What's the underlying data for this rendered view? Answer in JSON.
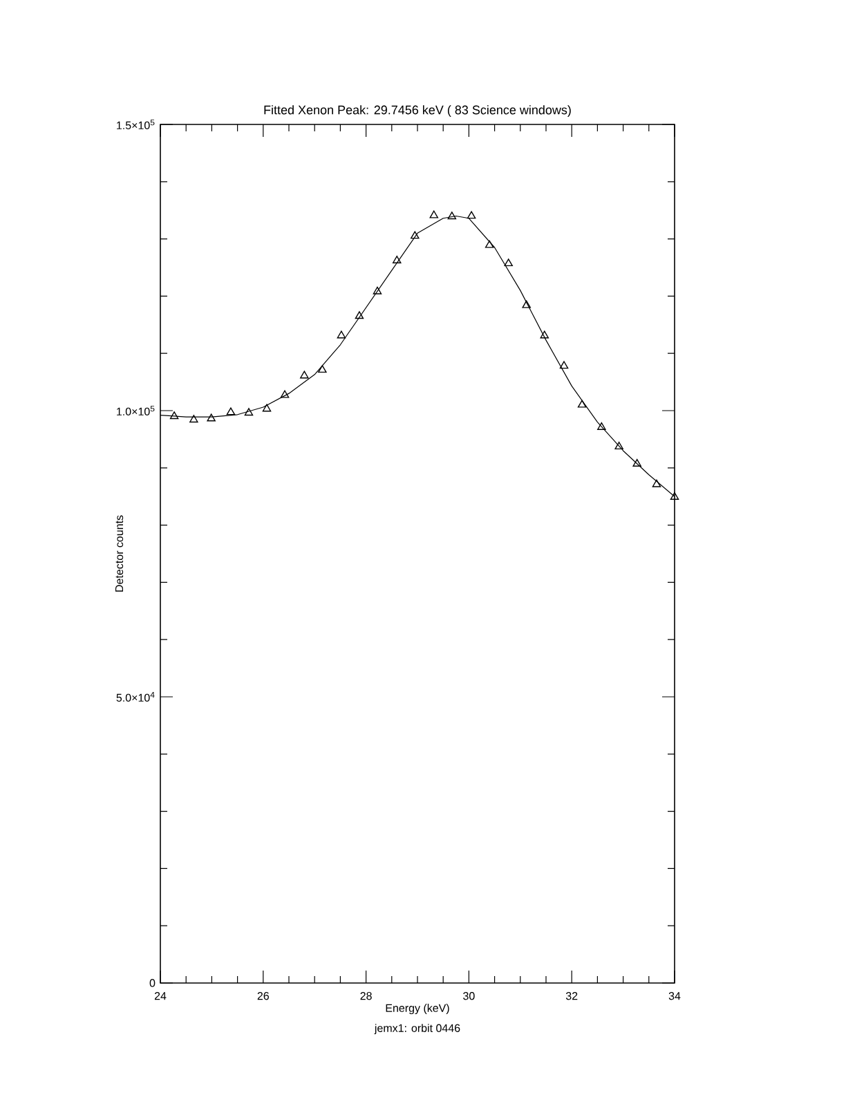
{
  "chart_data": {
    "type": "line",
    "title": "Fitted Xenon Peak: 29.7456 keV ( 83 Science windows)",
    "xlabel": "Energy (keV)",
    "ylabel": "Detector counts",
    "annotations": [
      "jemx1: orbit 0446"
    ],
    "xlim": [
      24,
      34
    ],
    "ylim": [
      0,
      150000
    ],
    "xticks": [
      24,
      {
        "value": 24.5,
        "label": null
      },
      {
        "value": 25,
        "label": null
      },
      {
        "value": 25.5,
        "label": null
      },
      26,
      {
        "value": 26.5,
        "label": null
      },
      {
        "value": 27,
        "label": null
      },
      {
        "value": 27.5,
        "label": null
      },
      28,
      {
        "value": 28.5,
        "label": null
      },
      {
        "value": 29,
        "label": null
      },
      {
        "value": 29.5,
        "label": null
      },
      30,
      {
        "value": 30.5,
        "label": null
      },
      {
        "value": 31,
        "label": null
      },
      {
        "value": 31.5,
        "label": null
      },
      32,
      {
        "value": 32.5,
        "label": null
      },
      {
        "value": 33,
        "label": null
      },
      {
        "value": 33.5,
        "label": null
      },
      34
    ],
    "yticks": [
      0,
      {
        "value": 10000,
        "label": null
      },
      {
        "value": 20000,
        "label": null
      },
      {
        "value": 30000,
        "label": null
      },
      {
        "value": 40000,
        "label": null
      },
      {
        "value": 50000,
        "label": "5.0×10$^{4}$"
      },
      {
        "value": 60000,
        "label": null
      },
      {
        "value": 70000,
        "label": null
      },
      {
        "value": 80000,
        "label": null
      },
      {
        "value": 90000,
        "label": null
      },
      {
        "value": 100000,
        "label": "1.0×10$^{5}$"
      },
      {
        "value": 110000,
        "label": null
      },
      {
        "value": 120000,
        "label": null
      },
      {
        "value": 130000,
        "label": null
      },
      {
        "value": 140000,
        "label": null
      },
      {
        "value": 150000,
        "label": "1.5×10$^{5}$"
      }
    ],
    "grid": false,
    "legend": false,
    "series": [
      {
        "type": "scatter",
        "marker": "triangle",
        "color": "#000000",
        "x": [
          24.27,
          24.65,
          24.99,
          25.37,
          25.72,
          26.07,
          26.42,
          26.8,
          27.15,
          27.52,
          27.87,
          28.22,
          28.6,
          28.95,
          29.32,
          29.67,
          30.05,
          30.4,
          30.77,
          31.12,
          31.47,
          31.85,
          32.2,
          32.58,
          32.92,
          33.27,
          33.65,
          34.0
        ],
        "values": [
          99000,
          98400,
          98600,
          99700,
          99600,
          100300,
          102700,
          106100,
          107100,
          113100,
          116500,
          120800,
          126200,
          130500,
          134100,
          133900,
          134000,
          128900,
          125700,
          118400,
          113100,
          107800,
          101000,
          97100,
          93700,
          90700,
          87100,
          84900
        ]
      },
      {
        "marker": "none",
        "color": "#000000",
        "x": [
          24.0,
          24.5,
          25.0,
          25.5,
          26.0,
          26.5,
          27.0,
          27.5,
          28.0,
          28.5,
          29.0,
          29.5,
          29.75,
          30.0,
          30.5,
          31.0,
          31.5,
          32.0,
          32.5,
          33.0,
          33.5,
          34.0
        ],
        "values": [
          99200,
          98900,
          98900,
          99300,
          100600,
          103000,
          106300,
          111500,
          118000,
          124500,
          131000,
          133600,
          134000,
          133600,
          128500,
          121000,
          112300,
          104300,
          98000,
          93000,
          88800,
          85000
        ]
      }
    ]
  }
}
